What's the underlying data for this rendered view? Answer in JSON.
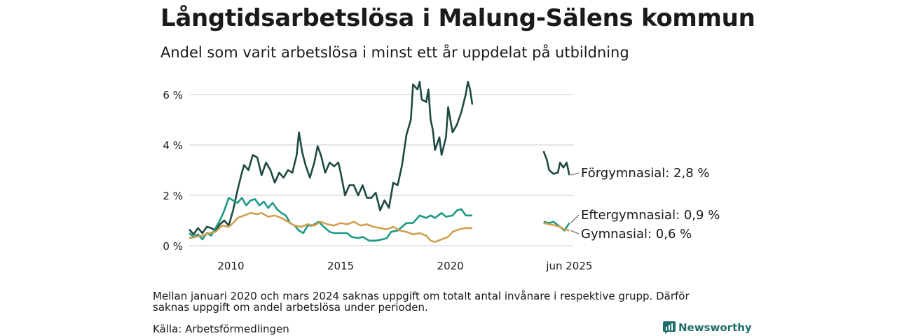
{
  "title": "Långtidsarbetslösa i Malung-Sälens kommun",
  "subtitle": "Andel som varit arbetslösa i minst ett år uppdelat på utbildning",
  "note": "Mellan januari 2020 och mars 2024 saknas uppgift om totalt antal invånare i respektive grupp. Därför saknas uppgift om andel arbetslösa under perioden.",
  "source": "Källa: Arbetsförmedlingen",
  "brand": "Newsworthy",
  "colors": {
    "forgymnasial": "#1f4a43",
    "eftergymnasial": "#1c9985",
    "gymnasial": "#d0a050",
    "grid": "#dddddd"
  },
  "chart_data": {
    "type": "line",
    "ylim": [
      0,
      6.6
    ],
    "y_ticks": [
      0,
      2,
      4,
      6
    ],
    "y_tick_labels": [
      "0 %",
      "2 %",
      "4 %",
      "6 %"
    ],
    "x_ticks": [
      2010,
      2015,
      2020,
      2025.42
    ],
    "x_tick_labels": [
      "2010",
      "2015",
      "2020",
      "jun 2025"
    ],
    "xlim": [
      2008.1,
      2025.6
    ],
    "grid": true,
    "series": [
      {
        "name": "Förgymnasial",
        "end_label": "Förgymnasial: 2,8 %",
        "color": "#1f4a43",
        "segments": [
          [
            [
              2008.1,
              0.65
            ],
            [
              2008.3,
              0.45
            ],
            [
              2008.5,
              0.7
            ],
            [
              2008.7,
              0.5
            ],
            [
              2008.9,
              0.75
            ],
            [
              2009.1,
              0.7
            ],
            [
              2009.3,
              0.6
            ],
            [
              2009.5,
              0.85
            ],
            [
              2009.7,
              1.0
            ],
            [
              2009.9,
              0.8
            ],
            [
              2010.1,
              1.4
            ],
            [
              2010.3,
              2.2
            ],
            [
              2010.5,
              2.9
            ],
            [
              2010.6,
              3.2
            ],
            [
              2010.8,
              3.0
            ],
            [
              2011.0,
              3.6
            ],
            [
              2011.2,
              3.5
            ],
            [
              2011.4,
              2.8
            ],
            [
              2011.6,
              3.3
            ],
            [
              2011.8,
              3.0
            ],
            [
              2012.0,
              2.5
            ],
            [
              2012.2,
              2.9
            ],
            [
              2012.4,
              2.7
            ],
            [
              2012.6,
              3.0
            ],
            [
              2012.8,
              2.9
            ],
            [
              2013.0,
              3.6
            ],
            [
              2013.1,
              4.5
            ],
            [
              2013.25,
              3.7
            ],
            [
              2013.4,
              3.2
            ],
            [
              2013.6,
              2.7
            ],
            [
              2013.8,
              3.3
            ],
            [
              2013.95,
              3.95
            ],
            [
              2014.1,
              3.6
            ],
            [
              2014.3,
              2.9
            ],
            [
              2014.5,
              3.3
            ],
            [
              2014.7,
              3.15
            ],
            [
              2014.9,
              3.3
            ],
            [
              2015.0,
              2.9
            ],
            [
              2015.2,
              2.0
            ],
            [
              2015.4,
              2.4
            ],
            [
              2015.6,
              2.4
            ],
            [
              2015.8,
              2.0
            ],
            [
              2016.0,
              2.4
            ],
            [
              2016.2,
              1.9
            ],
            [
              2016.4,
              1.9
            ],
            [
              2016.6,
              2.1
            ],
            [
              2016.8,
              1.4
            ],
            [
              2017.0,
              1.8
            ],
            [
              2017.2,
              1.5
            ],
            [
              2017.4,
              2.5
            ],
            [
              2017.6,
              2.4
            ],
            [
              2017.8,
              3.2
            ],
            [
              2018.0,
              4.4
            ],
            [
              2018.2,
              5.0
            ],
            [
              2018.3,
              6.4
            ],
            [
              2018.5,
              6.2
            ],
            [
              2018.6,
              6.5
            ],
            [
              2018.7,
              5.8
            ],
            [
              2018.9,
              5.7
            ],
            [
              2019.0,
              6.2
            ],
            [
              2019.1,
              5.0
            ],
            [
              2019.2,
              4.6
            ],
            [
              2019.3,
              3.8
            ],
            [
              2019.5,
              4.3
            ],
            [
              2019.6,
              3.6
            ],
            [
              2019.8,
              4.3
            ],
            [
              2019.9,
              5.5
            ],
            [
              2020.1,
              4.5
            ],
            [
              2020.3,
              4.8
            ],
            [
              2020.5,
              5.3
            ],
            [
              2020.7,
              6.0
            ],
            [
              2020.8,
              6.5
            ],
            [
              2020.9,
              6.2
            ],
            [
              2021.0,
              5.6
            ]
          ],
          [
            [
              2024.25,
              3.75
            ],
            [
              2024.4,
              3.4
            ],
            [
              2024.5,
              3.0
            ],
            [
              2024.7,
              2.85
            ],
            [
              2024.9,
              2.9
            ],
            [
              2025.0,
              3.3
            ],
            [
              2025.15,
              3.1
            ],
            [
              2025.3,
              3.3
            ],
            [
              2025.42,
              2.8
            ]
          ]
        ]
      },
      {
        "name": "Eftergymnasial",
        "end_label": "Eftergymnasial: 0,9 %",
        "color": "#1c9985",
        "segments": [
          [
            [
              2008.1,
              0.5
            ],
            [
              2008.3,
              0.35
            ],
            [
              2008.5,
              0.45
            ],
            [
              2008.7,
              0.25
            ],
            [
              2008.9,
              0.5
            ],
            [
              2009.1,
              0.4
            ],
            [
              2009.3,
              0.7
            ],
            [
              2009.5,
              1.0
            ],
            [
              2009.7,
              1.4
            ],
            [
              2009.9,
              1.9
            ],
            [
              2010.1,
              1.8
            ],
            [
              2010.3,
              1.7
            ],
            [
              2010.5,
              1.9
            ],
            [
              2010.7,
              1.6
            ],
            [
              2010.9,
              1.8
            ],
            [
              2011.1,
              1.85
            ],
            [
              2011.3,
              1.6
            ],
            [
              2011.5,
              1.75
            ],
            [
              2011.7,
              1.5
            ],
            [
              2011.9,
              1.7
            ],
            [
              2012.1,
              1.45
            ],
            [
              2012.3,
              1.3
            ],
            [
              2012.5,
              1.2
            ],
            [
              2012.7,
              0.9
            ],
            [
              2012.9,
              0.8
            ],
            [
              2013.1,
              0.6
            ],
            [
              2013.3,
              0.5
            ],
            [
              2013.5,
              0.8
            ],
            [
              2013.7,
              0.8
            ],
            [
              2014.0,
              0.95
            ],
            [
              2014.3,
              0.7
            ],
            [
              2014.5,
              0.55
            ],
            [
              2014.7,
              0.5
            ],
            [
              2015.0,
              0.5
            ],
            [
              2015.3,
              0.5
            ],
            [
              2015.5,
              0.35
            ],
            [
              2015.8,
              0.3
            ],
            [
              2016.0,
              0.35
            ],
            [
              2016.3,
              0.2
            ],
            [
              2016.6,
              0.2
            ],
            [
              2016.9,
              0.25
            ],
            [
              2017.1,
              0.3
            ],
            [
              2017.3,
              0.55
            ],
            [
              2017.6,
              0.6
            ],
            [
              2018.0,
              0.9
            ],
            [
              2018.3,
              0.9
            ],
            [
              2018.6,
              1.2
            ],
            [
              2018.9,
              1.1
            ],
            [
              2019.1,
              1.2
            ],
            [
              2019.3,
              1.1
            ],
            [
              2019.6,
              1.3
            ],
            [
              2019.8,
              1.15
            ],
            [
              2020.1,
              1.2
            ],
            [
              2020.3,
              1.4
            ],
            [
              2020.5,
              1.45
            ],
            [
              2020.7,
              1.2
            ],
            [
              2021.0,
              1.2
            ]
          ],
          [
            [
              2024.25,
              0.95
            ],
            [
              2024.5,
              0.9
            ],
            [
              2024.7,
              0.95
            ],
            [
              2025.0,
              0.75
            ],
            [
              2025.2,
              0.6
            ],
            [
              2025.42,
              0.9
            ]
          ]
        ]
      },
      {
        "name": "Gymnasial",
        "end_label": "Gymnasial: 0,6 %",
        "color": "#d0a050",
        "segments": [
          [
            [
              2008.1,
              0.3
            ],
            [
              2008.4,
              0.35
            ],
            [
              2008.7,
              0.4
            ],
            [
              2009.0,
              0.5
            ],
            [
              2009.3,
              0.55
            ],
            [
              2009.6,
              0.8
            ],
            [
              2009.9,
              0.75
            ],
            [
              2010.1,
              0.9
            ],
            [
              2010.3,
              1.1
            ],
            [
              2010.6,
              1.2
            ],
            [
              2010.9,
              1.3
            ],
            [
              2011.2,
              1.25
            ],
            [
              2011.4,
              1.3
            ],
            [
              2011.7,
              1.15
            ],
            [
              2012.0,
              1.2
            ],
            [
              2012.3,
              1.1
            ],
            [
              2012.6,
              0.95
            ],
            [
              2012.9,
              0.8
            ],
            [
              2013.2,
              0.75
            ],
            [
              2013.5,
              0.85
            ],
            [
              2013.8,
              0.8
            ],
            [
              2014.1,
              0.95
            ],
            [
              2014.4,
              0.85
            ],
            [
              2014.7,
              0.8
            ],
            [
              2015.0,
              0.9
            ],
            [
              2015.3,
              0.85
            ],
            [
              2015.6,
              0.95
            ],
            [
              2015.9,
              0.8
            ],
            [
              2016.2,
              0.85
            ],
            [
              2016.5,
              0.75
            ],
            [
              2016.8,
              0.7
            ],
            [
              2017.1,
              0.65
            ],
            [
              2017.4,
              0.75
            ],
            [
              2017.7,
              0.6
            ],
            [
              2018.0,
              0.55
            ],
            [
              2018.3,
              0.45
            ],
            [
              2018.6,
              0.5
            ],
            [
              2018.9,
              0.4
            ],
            [
              2019.1,
              0.2
            ],
            [
              2019.3,
              0.15
            ],
            [
              2019.6,
              0.25
            ],
            [
              2019.9,
              0.35
            ],
            [
              2020.1,
              0.55
            ],
            [
              2020.4,
              0.65
            ],
            [
              2020.7,
              0.7
            ],
            [
              2021.0,
              0.7
            ]
          ],
          [
            [
              2024.25,
              0.9
            ],
            [
              2024.5,
              0.85
            ],
            [
              2024.8,
              0.8
            ],
            [
              2025.0,
              0.75
            ],
            [
              2025.2,
              0.65
            ],
            [
              2025.42,
              0.6
            ]
          ]
        ]
      }
    ]
  }
}
